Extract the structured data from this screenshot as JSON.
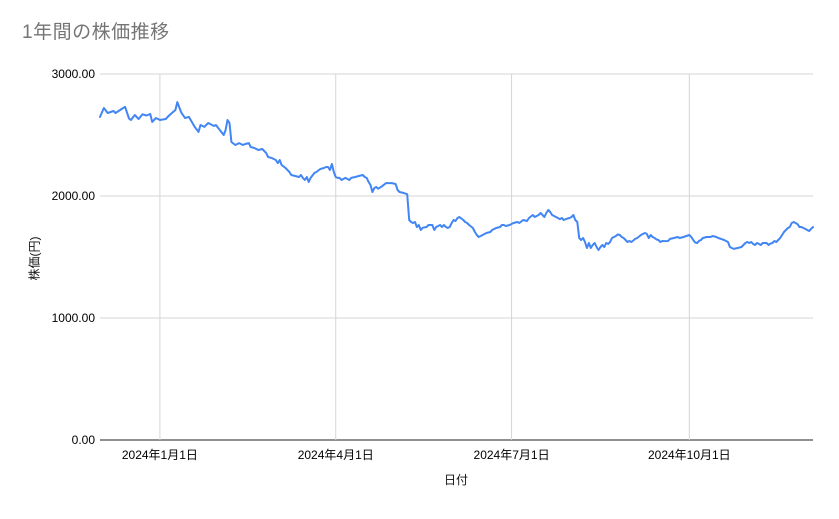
{
  "chart": {
    "title": "1年間の株価推移",
    "xlabel": "日付",
    "ylabel": "株価(円)"
  },
  "colors": {
    "line": "#4285f4",
    "gridline": "#d5d5d5",
    "axis_line": "#222222",
    "title_text": "#757575",
    "tick_text": "#000000"
  },
  "chart_data": {
    "type": "line",
    "title": "1年間の株価推移",
    "xlabel": "日付",
    "ylabel": "株価(円)",
    "ylim": [
      0,
      3000
    ],
    "grid": true,
    "legend": "none",
    "y_tick_values": [
      3000,
      2000,
      1000,
      0
    ],
    "y_tick_labels": [
      "3000.00",
      "2000.00",
      "1000.00",
      "0.00"
    ],
    "x_tick_labels": [
      "2024年1月1日",
      "2024年4月1日",
      "2024年7月1日",
      "2024年10月1日"
    ],
    "x_tick_days": [
      0,
      91,
      182,
      274
    ],
    "x_range_days": [
      -31,
      338
    ],
    "x_unit": "days_since_2024-01-01",
    "series": [
      {
        "name": "株価",
        "color": "#4285f4",
        "points_day_value": [
          [
            -31,
            2648
          ],
          [
            -29,
            2721
          ],
          [
            -27,
            2680
          ],
          [
            -24,
            2697
          ],
          [
            -23,
            2680
          ],
          [
            -19,
            2721
          ],
          [
            -18,
            2730
          ],
          [
            -16,
            2635
          ],
          [
            -15,
            2623
          ],
          [
            -13,
            2664
          ],
          [
            -11,
            2631
          ],
          [
            -9,
            2670
          ],
          [
            -7,
            2660
          ],
          [
            -5,
            2672
          ],
          [
            -4,
            2607
          ],
          [
            -2,
            2639
          ],
          [
            0,
            2623
          ],
          [
            3,
            2631
          ],
          [
            5,
            2664
          ],
          [
            8,
            2705
          ],
          [
            9,
            2770
          ],
          [
            11,
            2685
          ],
          [
            13,
            2639
          ],
          [
            15,
            2648
          ],
          [
            18,
            2566
          ],
          [
            20,
            2525
          ],
          [
            21,
            2582
          ],
          [
            23,
            2566
          ],
          [
            25,
            2598
          ],
          [
            28,
            2574
          ],
          [
            29,
            2582
          ],
          [
            31,
            2541
          ],
          [
            33,
            2500
          ],
          [
            34,
            2541
          ],
          [
            35,
            2623
          ],
          [
            36,
            2598
          ],
          [
            37,
            2443
          ],
          [
            39,
            2418
          ],
          [
            41,
            2434
          ],
          [
            43,
            2418
          ],
          [
            44,
            2425
          ],
          [
            46,
            2434
          ],
          [
            47,
            2402
          ],
          [
            49,
            2393
          ],
          [
            51,
            2377
          ],
          [
            53,
            2385
          ],
          [
            55,
            2352
          ],
          [
            56,
            2320
          ],
          [
            58,
            2311
          ],
          [
            60,
            2295
          ],
          [
            61,
            2270
          ],
          [
            62,
            2295
          ],
          [
            63,
            2254
          ],
          [
            65,
            2230
          ],
          [
            67,
            2197
          ],
          [
            68,
            2172
          ],
          [
            70,
            2164
          ],
          [
            72,
            2156
          ],
          [
            73,
            2172
          ],
          [
            74,
            2148
          ],
          [
            75,
            2131
          ],
          [
            76,
            2156
          ],
          [
            77,
            2115
          ],
          [
            78,
            2148
          ],
          [
            80,
            2189
          ],
          [
            81,
            2197
          ],
          [
            83,
            2221
          ],
          [
            85,
            2230
          ],
          [
            86,
            2238
          ],
          [
            87,
            2238
          ],
          [
            88,
            2213
          ],
          [
            89,
            2262
          ],
          [
            90,
            2197
          ],
          [
            91,
            2156
          ],
          [
            92,
            2148
          ],
          [
            93,
            2148
          ],
          [
            94,
            2131
          ],
          [
            96,
            2148
          ],
          [
            98,
            2131
          ],
          [
            99,
            2148
          ],
          [
            101,
            2156
          ],
          [
            103,
            2164
          ],
          [
            105,
            2172
          ],
          [
            106,
            2156
          ],
          [
            107,
            2148
          ],
          [
            108,
            2115
          ],
          [
            109,
            2090
          ],
          [
            110,
            2033
          ],
          [
            111,
            2066
          ],
          [
            112,
            2074
          ],
          [
            113,
            2060
          ],
          [
            115,
            2080
          ],
          [
            117,
            2106
          ],
          [
            119,
            2106
          ],
          [
            120,
            2106
          ],
          [
            122,
            2098
          ],
          [
            123,
            2049
          ],
          [
            124,
            2033
          ],
          [
            126,
            2025
          ],
          [
            128,
            2015
          ],
          [
            129,
            1803
          ],
          [
            130,
            1787
          ],
          [
            131,
            1779
          ],
          [
            132,
            1787
          ],
          [
            133,
            1746
          ],
          [
            134,
            1762
          ],
          [
            135,
            1721
          ],
          [
            136,
            1740
          ],
          [
            138,
            1746
          ],
          [
            139,
            1762
          ],
          [
            141,
            1762
          ],
          [
            142,
            1721
          ],
          [
            143,
            1746
          ],
          [
            145,
            1762
          ],
          [
            146,
            1746
          ],
          [
            147,
            1762
          ],
          [
            148,
            1746
          ],
          [
            149,
            1738
          ],
          [
            150,
            1746
          ],
          [
            151,
            1779
          ],
          [
            152,
            1803
          ],
          [
            153,
            1795
          ],
          [
            154,
            1820
          ],
          [
            155,
            1828
          ],
          [
            157,
            1803
          ],
          [
            158,
            1787
          ],
          [
            159,
            1779
          ],
          [
            160,
            1762
          ],
          [
            162,
            1738
          ],
          [
            163,
            1705
          ],
          [
            164,
            1680
          ],
          [
            165,
            1664
          ],
          [
            166,
            1672
          ],
          [
            167,
            1680
          ],
          [
            169,
            1697
          ],
          [
            171,
            1705
          ],
          [
            172,
            1721
          ],
          [
            174,
            1738
          ],
          [
            176,
            1746
          ],
          [
            177,
            1762
          ],
          [
            178,
            1762
          ],
          [
            179,
            1754
          ],
          [
            181,
            1762
          ],
          [
            183,
            1779
          ],
          [
            185,
            1787
          ],
          [
            186,
            1779
          ],
          [
            188,
            1803
          ],
          [
            190,
            1795
          ],
          [
            191,
            1820
          ],
          [
            193,
            1844
          ],
          [
            194,
            1828
          ],
          [
            196,
            1844
          ],
          [
            197,
            1861
          ],
          [
            198,
            1844
          ],
          [
            199,
            1828
          ],
          [
            200,
            1861
          ],
          [
            201,
            1885
          ],
          [
            202,
            1869
          ],
          [
            203,
            1844
          ],
          [
            205,
            1828
          ],
          [
            206,
            1820
          ],
          [
            207,
            1811
          ],
          [
            208,
            1820
          ],
          [
            209,
            1803
          ],
          [
            210,
            1811
          ],
          [
            212,
            1820
          ],
          [
            213,
            1828
          ],
          [
            214,
            1844
          ],
          [
            215,
            1803
          ],
          [
            216,
            1787
          ],
          [
            217,
            1656
          ],
          [
            218,
            1639
          ],
          [
            219,
            1656
          ],
          [
            220,
            1623
          ],
          [
            221,
            1574
          ],
          [
            222,
            1615
          ],
          [
            223,
            1574
          ],
          [
            224,
            1598
          ],
          [
            225,
            1615
          ],
          [
            226,
            1582
          ],
          [
            227,
            1557
          ],
          [
            228,
            1582
          ],
          [
            229,
            1598
          ],
          [
            230,
            1582
          ],
          [
            231,
            1615
          ],
          [
            232,
            1607
          ],
          [
            233,
            1623
          ],
          [
            234,
            1656
          ],
          [
            235,
            1664
          ],
          [
            236,
            1672
          ],
          [
            237,
            1685
          ],
          [
            238,
            1680
          ],
          [
            239,
            1664
          ],
          [
            240,
            1656
          ],
          [
            241,
            1639
          ],
          [
            242,
            1623
          ],
          [
            243,
            1631
          ],
          [
            244,
            1623
          ],
          [
            245,
            1635
          ],
          [
            246,
            1648
          ],
          [
            247,
            1656
          ],
          [
            249,
            1680
          ],
          [
            250,
            1689
          ],
          [
            251,
            1697
          ],
          [
            252,
            1689
          ],
          [
            253,
            1656
          ],
          [
            254,
            1680
          ],
          [
            255,
            1664
          ],
          [
            256,
            1656
          ],
          [
            257,
            1644
          ],
          [
            258,
            1639
          ],
          [
            259,
            1623
          ],
          [
            260,
            1631
          ],
          [
            261,
            1630
          ],
          [
            263,
            1631
          ],
          [
            264,
            1648
          ],
          [
            266,
            1656
          ],
          [
            268,
            1664
          ],
          [
            269,
            1656
          ],
          [
            271,
            1664
          ],
          [
            274,
            1680
          ],
          [
            275,
            1664
          ],
          [
            276,
            1639
          ],
          [
            277,
            1620
          ],
          [
            278,
            1615
          ],
          [
            279,
            1631
          ],
          [
            280,
            1639
          ],
          [
            281,
            1656
          ],
          [
            283,
            1664
          ],
          [
            285,
            1664
          ],
          [
            286,
            1672
          ],
          [
            288,
            1664
          ],
          [
            289,
            1656
          ],
          [
            291,
            1645
          ],
          [
            292,
            1639
          ],
          [
            294,
            1623
          ],
          [
            295,
            1582
          ],
          [
            296,
            1574
          ],
          [
            297,
            1566
          ],
          [
            299,
            1574
          ],
          [
            301,
            1582
          ],
          [
            302,
            1598
          ],
          [
            303,
            1615
          ],
          [
            304,
            1623
          ],
          [
            305,
            1615
          ],
          [
            306,
            1623
          ],
          [
            307,
            1607
          ],
          [
            308,
            1598
          ],
          [
            309,
            1615
          ],
          [
            310,
            1607
          ],
          [
            311,
            1598
          ],
          [
            312,
            1615
          ],
          [
            314,
            1615
          ],
          [
            315,
            1598
          ],
          [
            316,
            1610
          ],
          [
            317,
            1615
          ],
          [
            318,
            1631
          ],
          [
            319,
            1623
          ],
          [
            320,
            1639
          ],
          [
            321,
            1656
          ],
          [
            322,
            1680
          ],
          [
            323,
            1705
          ],
          [
            324,
            1721
          ],
          [
            325,
            1738
          ],
          [
            326,
            1746
          ],
          [
            327,
            1779
          ],
          [
            328,
            1787
          ],
          [
            329,
            1779
          ],
          [
            330,
            1770
          ],
          [
            331,
            1746
          ],
          [
            332,
            1746
          ],
          [
            333,
            1738
          ],
          [
            334,
            1730
          ],
          [
            335,
            1721
          ],
          [
            336,
            1713
          ],
          [
            337,
            1730
          ],
          [
            338,
            1746
          ]
        ]
      }
    ]
  }
}
